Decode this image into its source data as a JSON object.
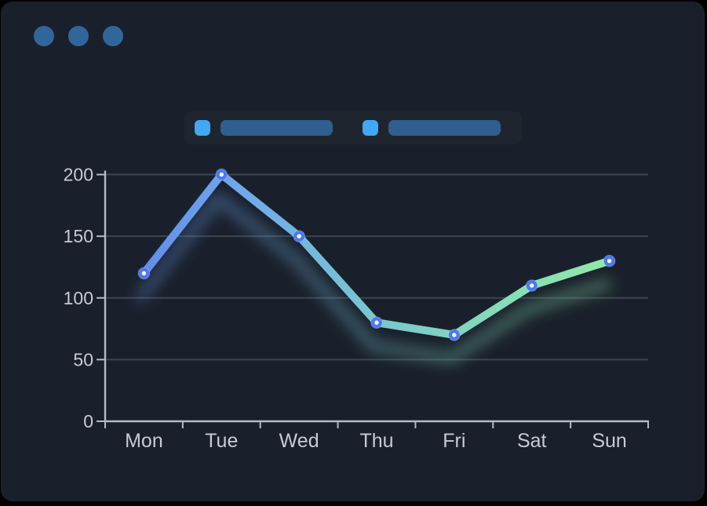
{
  "window": {
    "page_background": "#000000",
    "card_background": "#1a202b",
    "control_dot_color": "#31669b",
    "controls": [
      "dot",
      "dot",
      "dot"
    ]
  },
  "legend": {
    "items": [
      {
        "label": "",
        "swatch_color": "#41a7f6",
        "bar_color": "#2f5f8e"
      },
      {
        "label": "",
        "swatch_color": "#41a7f6",
        "bar_color": "#2f5f8e"
      }
    ]
  },
  "chart_data": {
    "type": "line",
    "title": "",
    "xlabel": "",
    "ylabel": "",
    "categories": [
      "Mon",
      "Tue",
      "Wed",
      "Thu",
      "Fri",
      "Sat",
      "Sun"
    ],
    "series": [
      {
        "name": "",
        "values": [
          120,
          200,
          150,
          80,
          70,
          110,
          130
        ]
      }
    ],
    "ylim": [
      0,
      200
    ],
    "yticks": [
      0,
      50,
      100,
      150,
      200
    ],
    "grid": true,
    "legend_position": "top",
    "style": {
      "line_gradient": [
        "#5d82ea",
        "#6fa9ec",
        "#79c7cf",
        "#86deb5",
        "#96eca4"
      ],
      "point_color": "#4b79f2",
      "point_center_color": "#ffffff",
      "axis_color": "#b4bac6",
      "grid_color": "rgba(152,160,176,0.28)",
      "tick_label_color": "#c6cad6"
    }
  }
}
